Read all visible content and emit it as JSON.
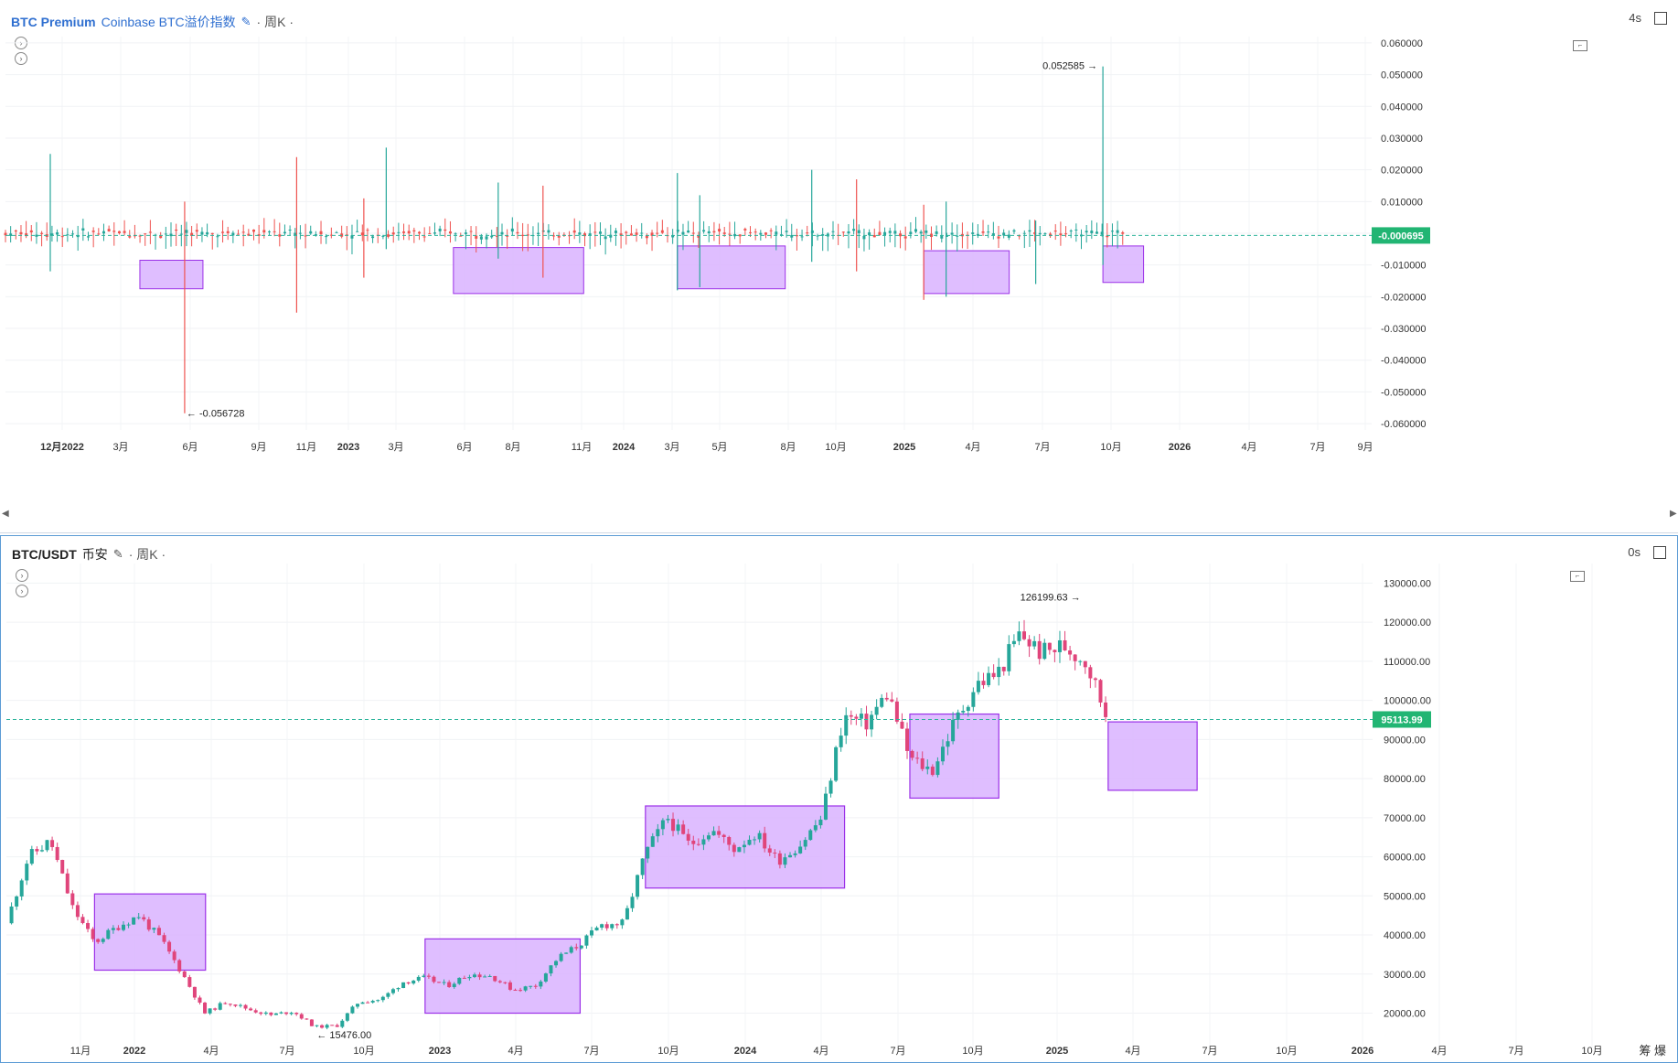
{
  "top_pane": {
    "symbol": "BTC Premium",
    "name": "Coinbase BTC溢价指数",
    "interval": "周K",
    "countdown": "4s",
    "current_price_label": "-0.000695",
    "max_label": "0.052585",
    "min_label": "-0.056728",
    "colors": {
      "up": "#26a69a",
      "down": "#ef5350",
      "box_fill": "#d9b3ff",
      "box_border": "#9b30e8",
      "price_tag": "#22b573"
    }
  },
  "bottom_pane": {
    "symbol": "BTC/USDT",
    "exchange": "币安",
    "interval": "周K",
    "countdown": "0s",
    "current_price_label": "95113.99",
    "max_label": "126199.63",
    "min_label": "15476.00",
    "corner_label": "筹 爆"
  },
  "chart_data": [
    {
      "type": "candlestick",
      "title": "BTC Premium Coinbase BTC溢价指数",
      "y_ticks": [
        "0.060000",
        "0.050000",
        "0.040000",
        "0.030000",
        "0.020000",
        "0.010000",
        "0.000000",
        "-0.010000",
        "-0.020000",
        "-0.030000",
        "-0.040000",
        "-0.050000",
        "-0.060000"
      ],
      "x_ticks": [
        "12月2022",
        "3月",
        "6月",
        "9月",
        "11月",
        "2023",
        "3月",
        "6月",
        "8月",
        "11月",
        "2024",
        "3月",
        "5月",
        "8月",
        "10月",
        "2025",
        "4月",
        "7月",
        "10月",
        "2026",
        "4月",
        "7月",
        "9月"
      ],
      "ylim": [
        -0.062,
        0.062
      ],
      "grid": true,
      "annotations": [
        {
          "text": "0.052585",
          "x": "2025-10",
          "y": 0.052585
        },
        {
          "text": "-0.056728",
          "x": "2022-05",
          "y": -0.056728
        }
      ],
      "current_price": -0.000695,
      "highlight_boxes": [
        {
          "x_start": "2022-03",
          "x_end": "2022-05",
          "y_top": -0.0085,
          "y_bottom": -0.0175
        },
        {
          "x_start": "2023-05",
          "x_end": "2023-10",
          "y_top": -0.0045,
          "y_bottom": -0.019
        },
        {
          "x_start": "2024-03",
          "x_end": "2024-07",
          "y_top": -0.004,
          "y_bottom": -0.0175
        },
        {
          "x_start": "2025-02",
          "x_end": "2025-05",
          "y_top": -0.0055,
          "y_bottom": -0.019
        },
        {
          "x_start": "2025-10",
          "x_end": "2025-11",
          "y_top": -0.004,
          "y_bottom": -0.0155
        }
      ],
      "spikes": [
        {
          "x": "2021-11",
          "high": 0.025,
          "low": -0.012,
          "up": true
        },
        {
          "x": "2022-05",
          "high": 0.01,
          "low": -0.056728,
          "up": false
        },
        {
          "x": "2022-10",
          "high": 0.024,
          "low": -0.025,
          "up": false
        },
        {
          "x": "2023-01",
          "high": 0.011,
          "low": -0.014,
          "up": false
        },
        {
          "x": "2023-02",
          "high": 0.027,
          "low": -0.005,
          "up": true
        },
        {
          "x": "2023-07",
          "high": 0.016,
          "low": -0.008,
          "up": true
        },
        {
          "x": "2023-09",
          "high": 0.015,
          "low": -0.014,
          "up": false
        },
        {
          "x": "2024-03",
          "high": 0.019,
          "low": -0.018,
          "up": true
        },
        {
          "x": "2024-04",
          "high": 0.012,
          "low": -0.017,
          "up": true
        },
        {
          "x": "2024-09",
          "high": 0.02,
          "low": -0.009,
          "up": true
        },
        {
          "x": "2024-11",
          "high": 0.017,
          "low": -0.012,
          "up": false
        },
        {
          "x": "2025-02",
          "high": 0.009,
          "low": -0.021,
          "up": false
        },
        {
          "x": "2025-03",
          "high": 0.01,
          "low": -0.02,
          "up": true
        },
        {
          "x": "2025-07",
          "high": 0.004,
          "low": -0.016,
          "up": true
        },
        {
          "x": "2025-10",
          "high": 0.052585,
          "low": -0.01,
          "up": true
        }
      ]
    },
    {
      "type": "candlestick",
      "title": "BTC/USDT 币安",
      "y_ticks": [
        "130000.00",
        "120000.00",
        "110000.00",
        "100000.00",
        "90000.00",
        "80000.00",
        "70000.00",
        "60000.00",
        "50000.00",
        "40000.00",
        "30000.00",
        "20000.00"
      ],
      "x_ticks": [
        "11月",
        "2022",
        "4月",
        "7月",
        "10月",
        "2023",
        "4月",
        "7月",
        "10月",
        "2024",
        "4月",
        "7月",
        "10月",
        "2025",
        "4月",
        "7月",
        "10月",
        "2026",
        "4月",
        "7月",
        "10月"
      ],
      "ylim": [
        11000,
        135000
      ],
      "grid": true,
      "annotations": [
        {
          "text": "126199.63",
          "x": "2025-10",
          "y": 126199.63
        },
        {
          "text": "15476.00",
          "x": "2022-11",
          "y": 15476.0
        }
      ],
      "current_price": 95113.99,
      "highlight_boxes": [
        {
          "x_start": "2022-01",
          "x_end": "2022-05",
          "y_top": 50500,
          "y_bottom": 31000
        },
        {
          "x_start": "2023-04",
          "x_end": "2023-10",
          "y_top": 39000,
          "y_bottom": 20000
        },
        {
          "x_start": "2024-02",
          "x_end": "2024-10",
          "y_top": 73000,
          "y_bottom": 52000
        },
        {
          "x_start": "2025-02",
          "x_end": "2025-05",
          "y_top": 96500,
          "y_bottom": 75000
        },
        {
          "x_start": "2025-11",
          "x_end": "2026-02",
          "y_top": 94500,
          "y_bottom": 77000
        }
      ],
      "price_path": [
        {
          "x": "2021-09",
          "y": 43000
        },
        {
          "x": "2021-10",
          "y": 60000
        },
        {
          "x": "2021-11",
          "y": 64000
        },
        {
          "x": "2021-12",
          "y": 47000
        },
        {
          "x": "2022-01",
          "y": 38000
        },
        {
          "x": "2022-02",
          "y": 42000
        },
        {
          "x": "2022-03",
          "y": 45000
        },
        {
          "x": "2022-04",
          "y": 39000
        },
        {
          "x": "2022-05",
          "y": 30000
        },
        {
          "x": "2022-06",
          "y": 20000
        },
        {
          "x": "2022-07",
          "y": 23000
        },
        {
          "x": "2022-08",
          "y": 21000
        },
        {
          "x": "2022-09",
          "y": 19500
        },
        {
          "x": "2022-10",
          "y": 20500
        },
        {
          "x": "2022-11",
          "y": 16500
        },
        {
          "x": "2022-12",
          "y": 16800
        },
        {
          "x": "2023-01",
          "y": 23000
        },
        {
          "x": "2023-02",
          "y": 23500
        },
        {
          "x": "2023-03",
          "y": 28000
        },
        {
          "x": "2023-04",
          "y": 29000
        },
        {
          "x": "2023-05",
          "y": 27000
        },
        {
          "x": "2023-06",
          "y": 30000
        },
        {
          "x": "2023-07",
          "y": 29500
        },
        {
          "x": "2023-08",
          "y": 26000
        },
        {
          "x": "2023-09",
          "y": 27000
        },
        {
          "x": "2023-10",
          "y": 34000
        },
        {
          "x": "2023-11",
          "y": 37500
        },
        {
          "x": "2023-12",
          "y": 42500
        },
        {
          "x": "2024-01",
          "y": 43000
        },
        {
          "x": "2024-02",
          "y": 61000
        },
        {
          "x": "2024-03",
          "y": 70000
        },
        {
          "x": "2024-04",
          "y": 63000
        },
        {
          "x": "2024-05",
          "y": 67000
        },
        {
          "x": "2024-06",
          "y": 62000
        },
        {
          "x": "2024-07",
          "y": 66000
        },
        {
          "x": "2024-08",
          "y": 59000
        },
        {
          "x": "2024-09",
          "y": 63000
        },
        {
          "x": "2024-10",
          "y": 70000
        },
        {
          "x": "2024-11",
          "y": 96000
        },
        {
          "x": "2024-12",
          "y": 94000
        },
        {
          "x": "2025-01",
          "y": 102000
        },
        {
          "x": "2025-02",
          "y": 85000
        },
        {
          "x": "2025-03",
          "y": 82000
        },
        {
          "x": "2025-04",
          "y": 94000
        },
        {
          "x": "2025-05",
          "y": 104000
        },
        {
          "x": "2025-06",
          "y": 107000
        },
        {
          "x": "2025-07",
          "y": 117000
        },
        {
          "x": "2025-08",
          "y": 112000
        },
        {
          "x": "2025-09",
          "y": 114000
        },
        {
          "x": "2025-10",
          "y": 110000
        },
        {
          "x": "2025-11",
          "y": 95113.99
        }
      ]
    }
  ]
}
